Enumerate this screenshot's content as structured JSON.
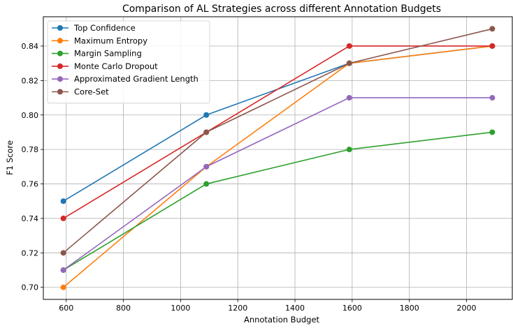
{
  "chart_data": {
    "type": "line",
    "title": "Comparison of AL Strategies across different Annotation Budgets",
    "xlabel": "Annotation Budget",
    "ylabel": "F1 Score",
    "xlim": [
      520,
      2160
    ],
    "ylim": [
      0.693,
      0.857
    ],
    "xticks": [
      600,
      800,
      1000,
      1200,
      1400,
      1600,
      1800,
      2000
    ],
    "yticks": [
      0.7,
      0.72,
      0.74,
      0.76,
      0.78,
      0.8,
      0.82,
      0.84
    ],
    "grid": true,
    "legend_position": "top-left",
    "x": [
      590,
      1090,
      1590,
      2090
    ],
    "series": [
      {
        "name": "Top Confidence",
        "color": "#1f77b4",
        "values": [
          0.75,
          0.8,
          0.83,
          0.84
        ]
      },
      {
        "name": "Maximum Entropy",
        "color": "#ff7f0e",
        "values": [
          0.7,
          0.77,
          0.83,
          0.84
        ]
      },
      {
        "name": "Margin Sampling",
        "color": "#2ca02c",
        "values": [
          0.71,
          0.76,
          0.78,
          0.79
        ]
      },
      {
        "name": "Monte Carlo Dropout",
        "color": "#d62728",
        "values": [
          0.74,
          0.79,
          0.84,
          0.84
        ]
      },
      {
        "name": "Approximated Gradient Length",
        "color": "#9467bd",
        "values": [
          0.71,
          0.77,
          0.81,
          0.81
        ]
      },
      {
        "name": "Core-Set",
        "color": "#8c564b",
        "values": [
          0.72,
          0.79,
          0.83,
          0.85
        ]
      }
    ]
  }
}
